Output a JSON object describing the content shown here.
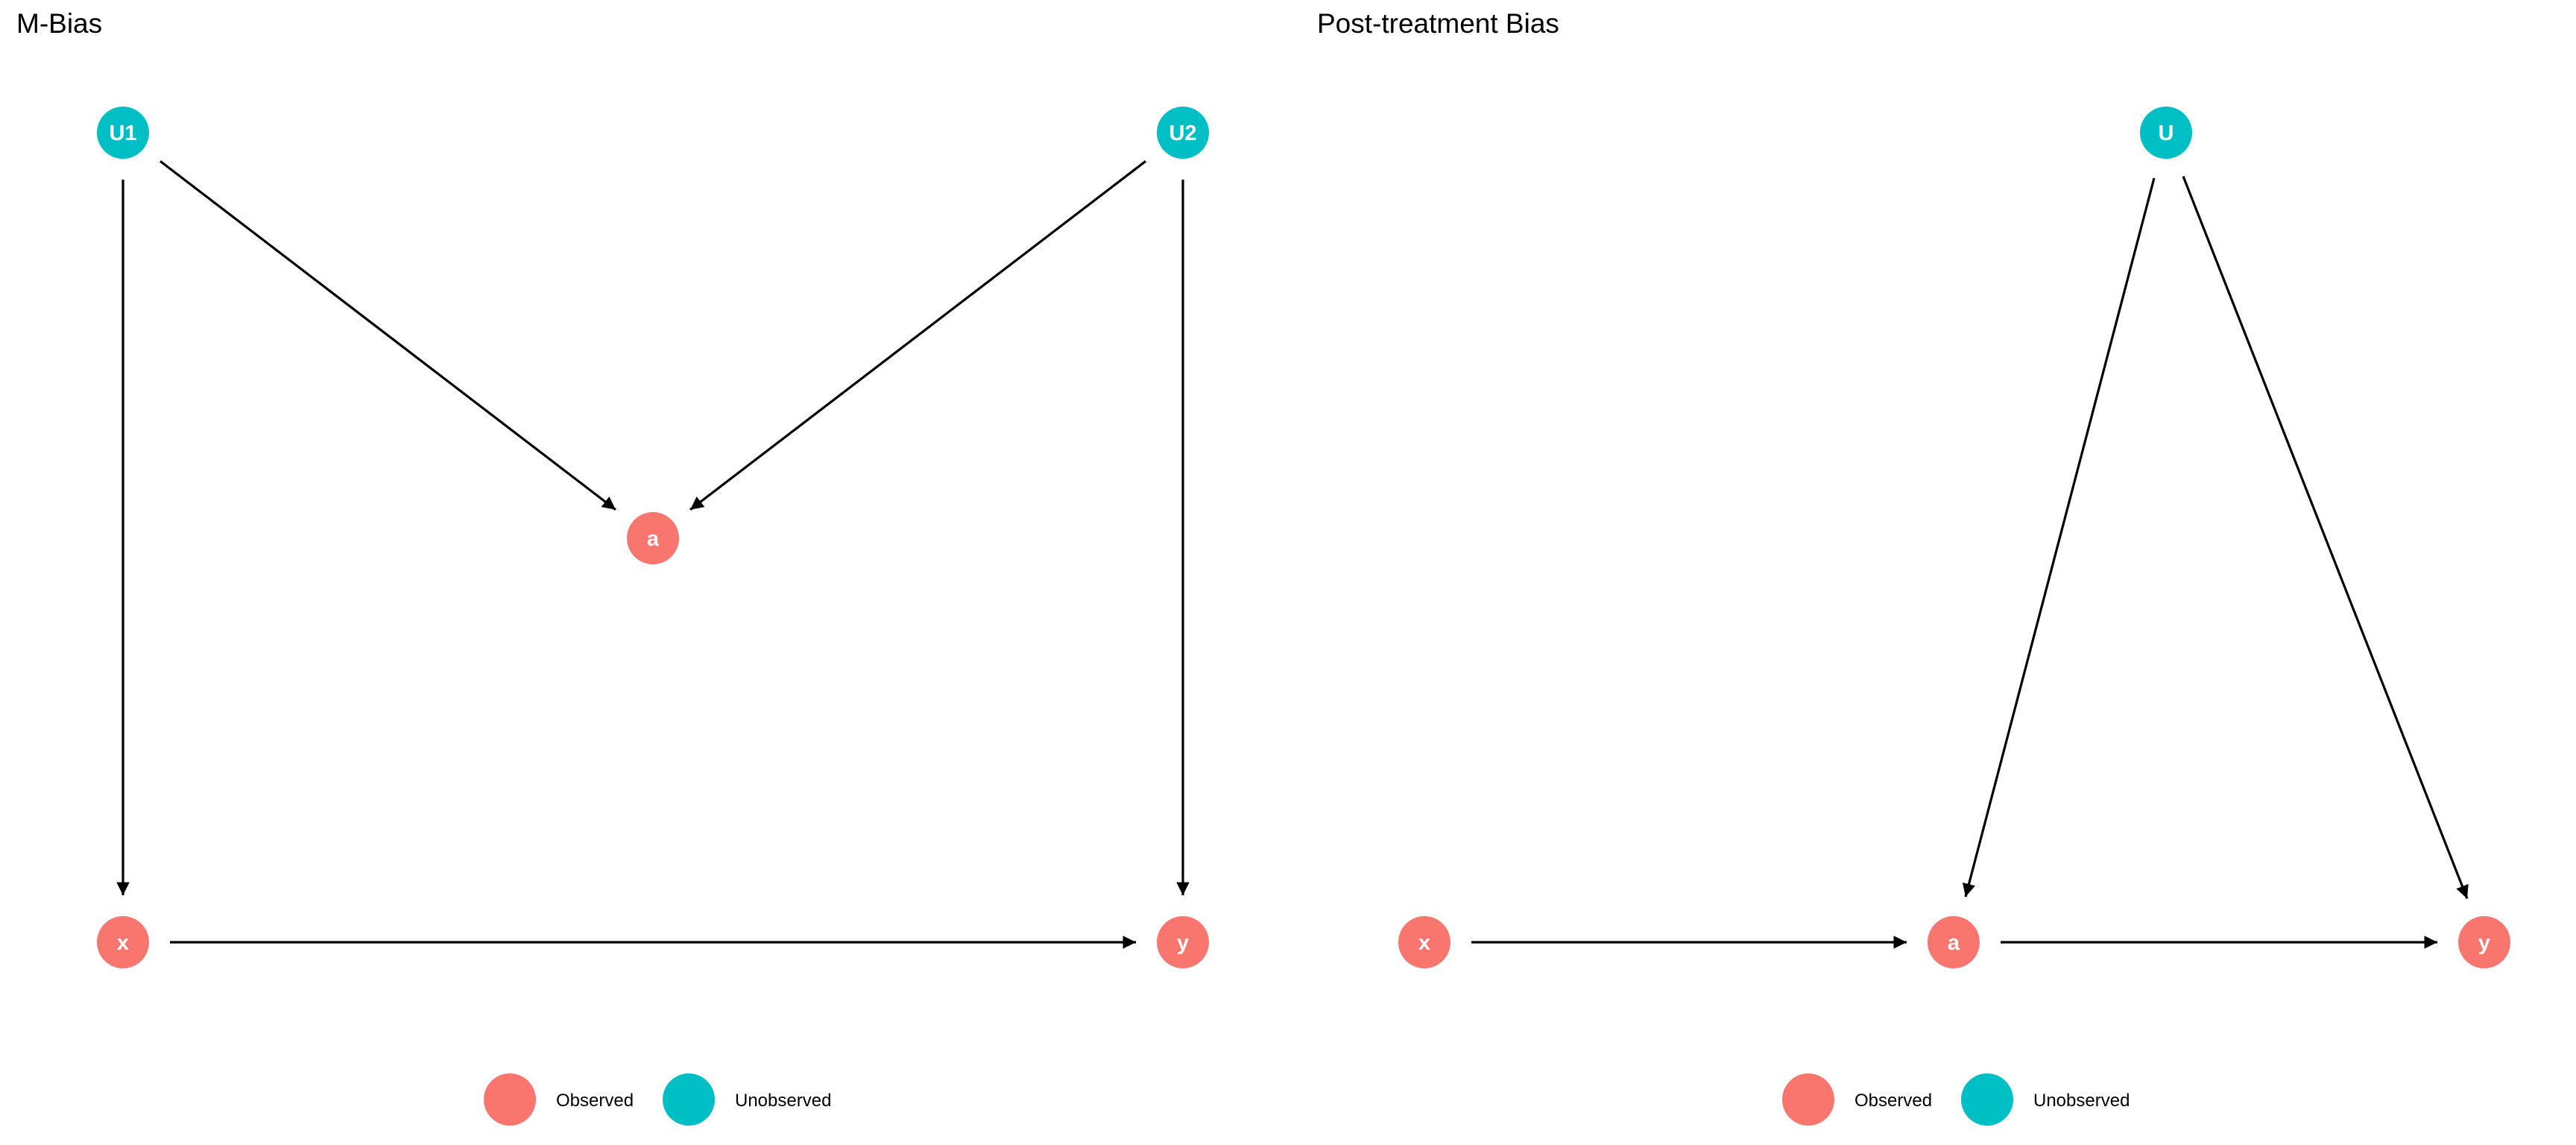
{
  "colors": {
    "observed": "#F8766D",
    "unobserved": "#00BFC4",
    "edge": "#000000"
  },
  "panels": [
    {
      "id": "m-bias",
      "title": "M-Bias",
      "nodes": [
        {
          "id": "U1",
          "label": "U1",
          "status": "unobserved"
        },
        {
          "id": "U2",
          "label": "U2",
          "status": "unobserved"
        },
        {
          "id": "a",
          "label": "a",
          "status": "observed"
        },
        {
          "id": "x",
          "label": "x",
          "status": "observed"
        },
        {
          "id": "y",
          "label": "y",
          "status": "observed"
        }
      ],
      "edges": [
        {
          "from": "U1",
          "to": "a"
        },
        {
          "from": "U2",
          "to": "a"
        },
        {
          "from": "U1",
          "to": "x"
        },
        {
          "from": "U2",
          "to": "y"
        },
        {
          "from": "x",
          "to": "y"
        }
      ],
      "legend": [
        {
          "label": "Observed",
          "status": "observed"
        },
        {
          "label": "Unobserved",
          "status": "unobserved"
        }
      ]
    },
    {
      "id": "post-treatment-bias",
      "title": "Post-treatment Bias",
      "nodes": [
        {
          "id": "U",
          "label": "U",
          "status": "unobserved"
        },
        {
          "id": "x",
          "label": "x",
          "status": "observed"
        },
        {
          "id": "a",
          "label": "a",
          "status": "observed"
        },
        {
          "id": "y",
          "label": "y",
          "status": "observed"
        }
      ],
      "edges": [
        {
          "from": "U",
          "to": "a"
        },
        {
          "from": "U",
          "to": "y"
        },
        {
          "from": "x",
          "to": "a"
        },
        {
          "from": "a",
          "to": "y"
        }
      ],
      "legend": [
        {
          "label": "Observed",
          "status": "observed"
        },
        {
          "label": "Unobserved",
          "status": "unobserved"
        }
      ]
    }
  ]
}
